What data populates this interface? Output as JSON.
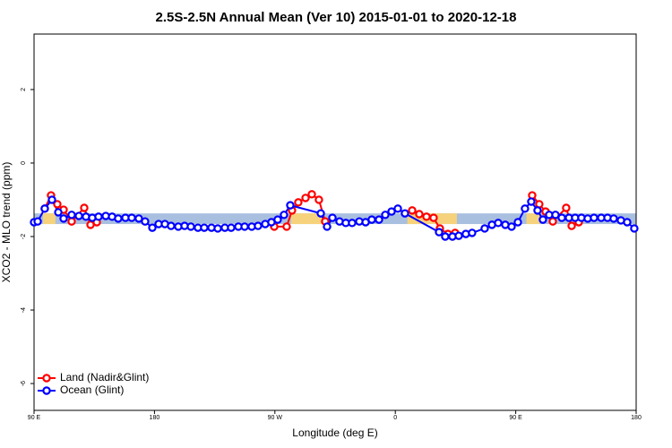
{
  "chart_data": {
    "type": "line",
    "title": "2.5S-2.5N Annual Mean (Ver 10)   2015-01-01 to 2020-12-18",
    "x_label": "Longitude (deg E)",
    "y_label": "XCO2 - MLO trend (ppm)",
    "xlim": [
      90,
      540
    ],
    "ylim": [
      -6.73,
      3.51
    ],
    "xticks": [
      {
        "value": 90,
        "label": "90 E"
      },
      {
        "value": 180,
        "label": "180"
      },
      {
        "value": 270,
        "label": "90 W"
      },
      {
        "value": 360,
        "label": "0"
      },
      {
        "value": 450,
        "label": "90 E"
      },
      {
        "value": 540,
        "label": "180"
      }
    ],
    "yticks": [
      -6,
      -4,
      -2,
      0,
      2
    ],
    "legend": "bottom-left",
    "band": {
      "range": [
        -1.66,
        -1.37
      ],
      "color": "#a9bfe0",
      "land_color": "#f7d27c",
      "land_spans": [
        [
          96.7,
          106
        ],
        [
          282,
          307
        ],
        [
          369,
          406
        ],
        [
          458,
          468
        ]
      ]
    },
    "series": [
      {
        "name": "Land (Nadir&Glint)",
        "color": "#ff0000",
        "x": [
          98.0,
          102.7,
          107.4,
          112.1,
          118.1,
          127.5,
          132.2,
          136.9,
          null,
          269.5,
          278.8,
          282.8,
          287.5,
          292.9,
          297.6,
          302.9,
          307.6,
          null,
          372.6,
          377.9,
          383.3,
          388.6,
          393.3,
          399.3,
          404.7,
          null,
          462.3,
          467.6,
          472.3,
          477.7,
          487.7,
          491.8,
          497.1
        ],
        "values": [
          -1.24,
          -0.88,
          -1.12,
          -1.27,
          -1.59,
          -1.22,
          -1.68,
          -1.61,
          null,
          -1.73,
          -1.73,
          -1.29,
          -1.07,
          -0.95,
          -0.85,
          -1.0,
          -1.59,
          null,
          -1.29,
          -1.39,
          -1.46,
          -1.49,
          -1.78,
          -1.93,
          -1.9,
          null,
          -0.88,
          -1.12,
          -1.32,
          -1.59,
          -1.22,
          -1.71,
          -1.61
        ]
      },
      {
        "name": "Ocean (Glint)",
        "color": "#0000ff",
        "x": [
          90,
          92.7,
          98.0,
          103.4,
          108.1,
          112.1,
          118.1,
          123.5,
          128.8,
          133.5,
          138.2,
          143.6,
          148.3,
          152.9,
          158.3,
          163.0,
          168.3,
          173.0,
          178.4,
          183.1,
          187.8,
          192.4,
          197.8,
          202.5,
          207.2,
          212.5,
          217.2,
          222.6,
          227.3,
          232.6,
          237.3,
          242.7,
          247.4,
          252.7,
          257.4,
          262.8,
          267.4,
          272.1,
          276.8,
          281.5,
          304.3,
          309.0,
          313.0,
          318.3,
          323.0,
          327.7,
          333.1,
          337.8,
          342.4,
          347.8,
          352.5,
          357.2,
          361.9,
          367.2,
          392.7,
          397.3,
          402.7,
          407.4,
          412.7,
          417.4,
          426.8,
          432.2,
          436.9,
          442.2,
          446.9,
          451.6,
          456.9,
          461.6,
          466.3,
          470.3,
          475.0,
          479.7,
          484.4,
          489.8,
          494.4,
          499.1,
          503.8,
          508.5,
          513.9,
          518.6,
          523.2,
          528.6,
          533.3,
          538.6
        ],
        "values": [
          -1.61,
          -1.59,
          -1.24,
          -1.0,
          -1.34,
          -1.51,
          -1.41,
          -1.44,
          -1.46,
          -1.49,
          -1.46,
          -1.44,
          -1.46,
          -1.51,
          -1.49,
          -1.49,
          -1.51,
          -1.59,
          -1.76,
          -1.66,
          -1.66,
          -1.71,
          -1.73,
          -1.71,
          -1.73,
          -1.76,
          -1.76,
          -1.76,
          -1.78,
          -1.76,
          -1.76,
          -1.73,
          -1.73,
          -1.73,
          -1.71,
          -1.66,
          -1.61,
          -1.54,
          -1.41,
          -1.15,
          -1.37,
          -1.73,
          -1.49,
          -1.59,
          -1.63,
          -1.63,
          -1.59,
          -1.61,
          -1.54,
          -1.54,
          -1.41,
          -1.32,
          -1.24,
          -1.37,
          -1.88,
          -2.0,
          -2.0,
          -1.98,
          -1.93,
          -1.9,
          -1.78,
          -1.68,
          -1.63,
          -1.68,
          -1.73,
          -1.61,
          -1.24,
          -1.05,
          -1.29,
          -1.54,
          -1.41,
          -1.41,
          -1.49,
          -1.49,
          -1.49,
          -1.49,
          -1.51,
          -1.49,
          -1.49,
          -1.49,
          -1.51,
          -1.56,
          -1.61,
          -1.78
        ]
      }
    ]
  }
}
